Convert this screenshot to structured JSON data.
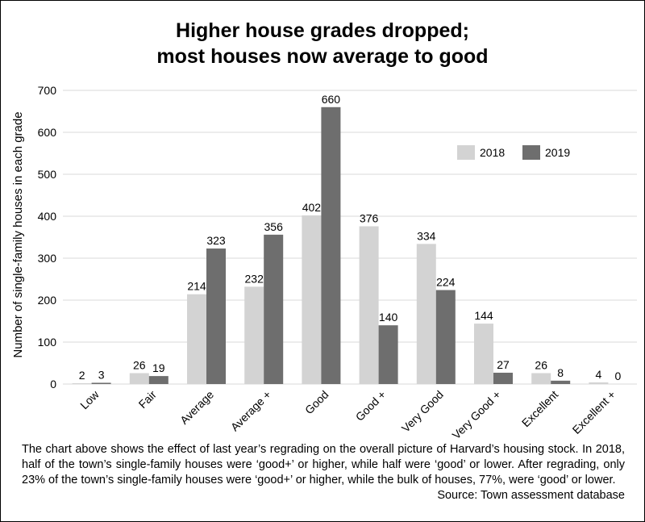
{
  "chart_data": {
    "type": "bar",
    "title_line1": "Higher house grades dropped;",
    "title_line2": "most houses now average to good",
    "ylabel": "Number of single-family houses in each grade",
    "xlabel": "",
    "ylim": [
      0,
      700
    ],
    "yticks": [
      0,
      100,
      200,
      300,
      400,
      500,
      600,
      700
    ],
    "grid": true,
    "legend_position": "top-right",
    "categories": [
      "Low",
      "Fair",
      "Average",
      "Average +",
      "Good",
      "Good +",
      "Very Good",
      "Very Good +",
      "Excellent",
      "Excellent +"
    ],
    "series": [
      {
        "name": "2018",
        "color": "#d3d3d3",
        "values": [
          2,
          26,
          214,
          232,
          402,
          376,
          334,
          144,
          26,
          4
        ]
      },
      {
        "name": "2019",
        "color": "#6e6e6e",
        "values": [
          3,
          19,
          323,
          356,
          660,
          140,
          224,
          27,
          8,
          0
        ]
      }
    ]
  },
  "caption": {
    "text": "The chart above shows the effect of last year’s regrading on the overall picture of Harvard’s housing stock. In 2018, half of the town’s single-family houses were ‘good+’ or higher, while half were ‘good’ or lower. After regrading, only 23% of the town’s single-family houses were ‘good+’ or higher, while the bulk of houses, 77%, were ‘good’ or lower.",
    "source": "Source: Town assessment database"
  }
}
